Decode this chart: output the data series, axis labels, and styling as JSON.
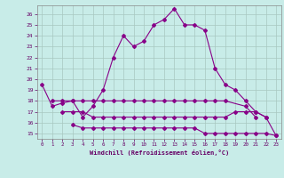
{
  "hours": [
    0,
    1,
    2,
    3,
    4,
    5,
    6,
    7,
    8,
    9,
    10,
    11,
    12,
    13,
    14,
    15,
    16,
    17,
    18,
    19,
    20,
    21,
    22,
    23
  ],
  "temp_line": [
    19.5,
    17.5,
    17.8,
    18.0,
    16.5,
    17.5,
    19.0,
    22.0,
    24.0,
    23.0,
    23.5,
    25.0,
    25.5,
    26.5,
    25.0,
    25.0,
    24.5,
    21.0,
    19.5,
    19.0,
    18.0,
    17.0,
    16.5,
    14.8
  ],
  "line_flat1_x": [
    1,
    2,
    3,
    4,
    5,
    6,
    7,
    8,
    9,
    10,
    11,
    12,
    13,
    14,
    15,
    16,
    17,
    18,
    20,
    21
  ],
  "line_flat1_y": [
    18.0,
    18.0,
    18.0,
    18.0,
    18.0,
    18.0,
    18.0,
    18.0,
    18.0,
    18.0,
    18.0,
    18.0,
    18.0,
    18.0,
    18.0,
    18.0,
    18.0,
    18.0,
    17.5,
    16.5
  ],
  "line_flat2_x": [
    2,
    3,
    4,
    5,
    6,
    7,
    8,
    9,
    10,
    11,
    12,
    13,
    14,
    15,
    16,
    17,
    18,
    19,
    20,
    21,
    22
  ],
  "line_flat2_y": [
    17.0,
    17.0,
    17.0,
    16.5,
    16.5,
    16.5,
    16.5,
    16.5,
    16.5,
    16.5,
    16.5,
    16.5,
    16.5,
    16.5,
    16.5,
    16.5,
    16.5,
    17.0,
    17.0,
    17.0,
    16.5
  ],
  "line_flat3_x": [
    3,
    4,
    5,
    6,
    7,
    8,
    9,
    10,
    11,
    12,
    13,
    14,
    15,
    16,
    17,
    18,
    19,
    20,
    21,
    22,
    23
  ],
  "line_flat3_y": [
    15.8,
    15.5,
    15.5,
    15.5,
    15.5,
    15.5,
    15.5,
    15.5,
    15.5,
    15.5,
    15.5,
    15.5,
    15.5,
    15.0,
    15.0,
    15.0,
    15.0,
    15.0,
    15.0,
    15.0,
    14.8
  ],
  "line_color": "#880088",
  "bg_color": "#c8ece8",
  "grid_color": "#a8c8c0",
  "xlabel": "Windchill (Refroidissement éolien,°C)",
  "ylabel_ticks": [
    15,
    16,
    17,
    18,
    19,
    20,
    21,
    22,
    23,
    24,
    25,
    26
  ],
  "ylim": [
    14.5,
    26.8
  ],
  "xlim": [
    -0.5,
    23.5
  ]
}
